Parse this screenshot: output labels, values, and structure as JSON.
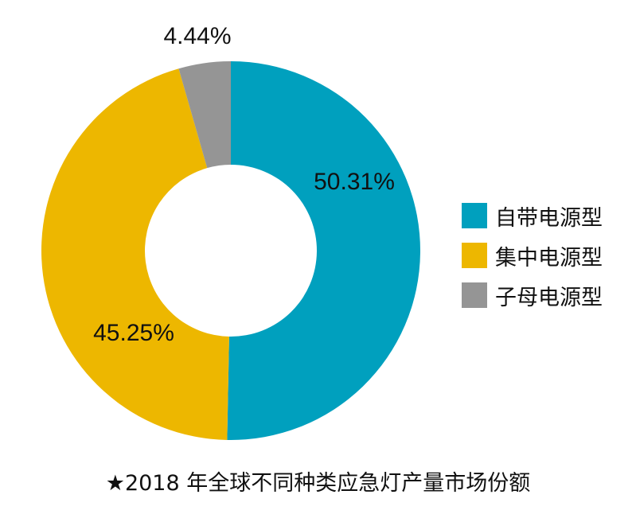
{
  "chart_data": {
    "type": "pie",
    "donut": true,
    "title": "★2018 年全球不同种类应急灯产量市场份额",
    "series": [
      {
        "name": "自带电源型",
        "value": 50.31,
        "label": "50.31%",
        "color": "#00A0BE"
      },
      {
        "name": "集中电源型",
        "value": 45.25,
        "label": "45.25%",
        "color": "#EDB700"
      },
      {
        "name": "子母电源型",
        "value": 4.44,
        "label": "4.44%",
        "color": "#959595"
      }
    ],
    "legend_position": "right"
  }
}
